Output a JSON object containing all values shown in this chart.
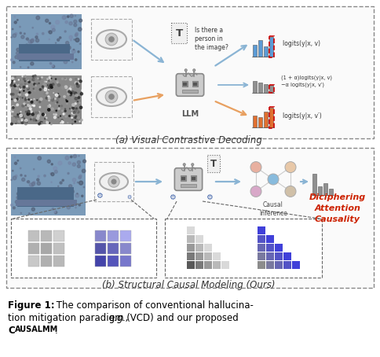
{
  "fig_width": 4.84,
  "fig_height": 4.54,
  "dpi": 100,
  "bg_color": "#ffffff",
  "panel_a_title": "(a) Visual Contrastive Decoding",
  "panel_b_title": "(b) Structural Causal Modeling (Ours)",
  "deciphering_text": "Diciphering\nAttention\nCausality",
  "causal_inference_text": "Causal\nInference",
  "llm_text": "LLM",
  "question_text": "Is there a\nperson in\nthe image?",
  "logits1": "logits(y|x, v)",
  "logits2": "(1 + α)logits(y|x, v)\n−α logits(y|x, v′)",
  "logits3": "logits(y|x, v′)",
  "blue_arrow": "#8ab4d4",
  "orange_arrow": "#e8a060",
  "red_italic_color": "#cc2200",
  "bar_blue": "#5b9bd5",
  "bar_red": "#c00000",
  "bar_gray": "#909090",
  "bar_orange": "#e07030",
  "gray_squares_light": [
    "#c0c0c0",
    "#b8b8b8",
    "#d0d0d0",
    "#b0b0b0",
    "#a8a8a8",
    "#c0c0c0",
    "#c8c8c8",
    "#b0b0b0",
    "#b8b8b8"
  ],
  "blue_squares": [
    "#8888cc",
    "#9999dd",
    "#aaaaee",
    "#5555aa",
    "#6666bb",
    "#8888cc",
    "#4444aa",
    "#5555bb",
    "#7777cc"
  ],
  "panel_a_bg": "#ffffff",
  "panel_b_bg": "#ffffff"
}
